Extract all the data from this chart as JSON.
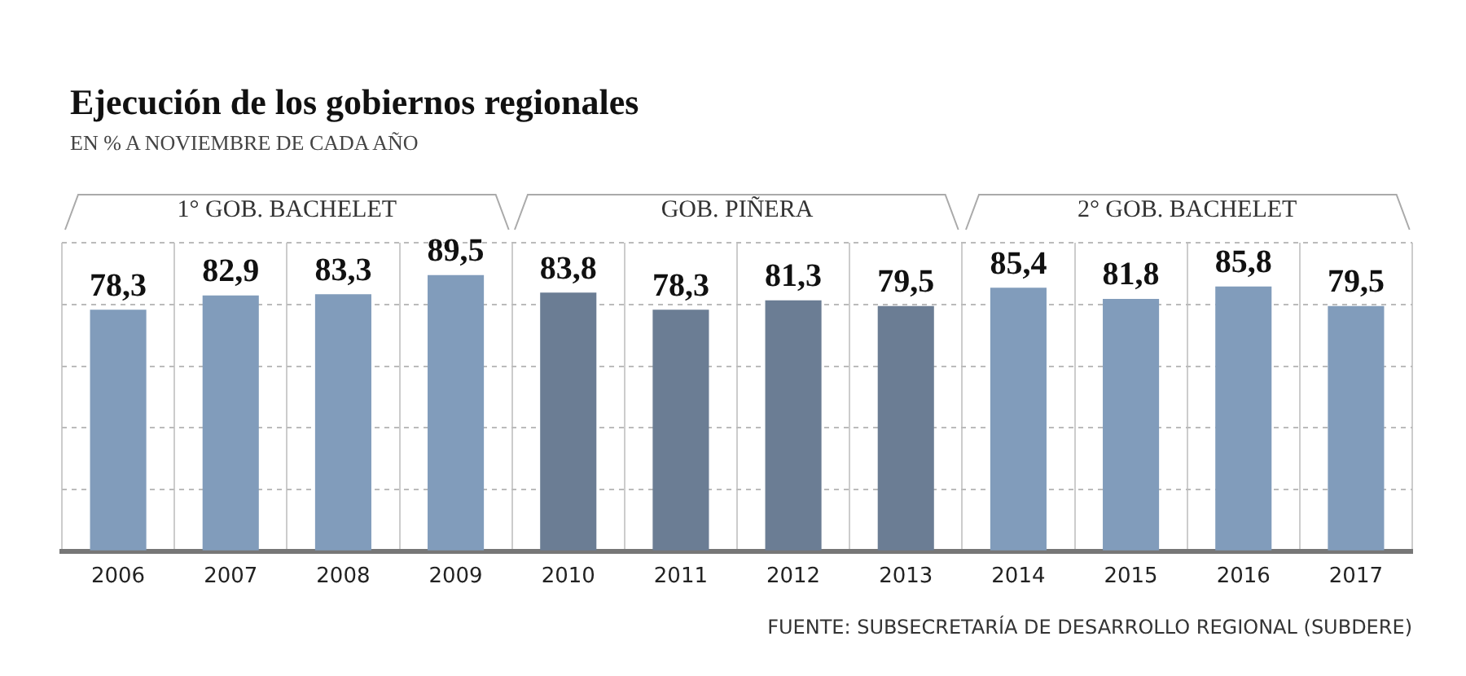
{
  "chart_data": {
    "type": "bar",
    "title": "Ejecución de los gobiernos regionales",
    "subtitle": "EN % A NOVIEMBRE DE CADA AÑO",
    "categories": [
      "2006",
      "2007",
      "2008",
      "2009",
      "2010",
      "2011",
      "2012",
      "2013",
      "2014",
      "2015",
      "2016",
      "2017"
    ],
    "values": [
      78.3,
      82.9,
      83.3,
      89.5,
      83.8,
      78.3,
      81.3,
      79.5,
      85.4,
      81.8,
      85.8,
      79.5
    ],
    "value_labels": [
      "78,3",
      "82,9",
      "83,3",
      "89,5",
      "83,8",
      "78,3",
      "81,3",
      "79,5",
      "85,4",
      "81,8",
      "85,8",
      "79,5"
    ],
    "colors": [
      "#819cbb",
      "#819cbb",
      "#819cbb",
      "#819cbb",
      "#6b7d94",
      "#6b7d94",
      "#6b7d94",
      "#6b7d94",
      "#819cbb",
      "#819cbb",
      "#819cbb",
      "#819cbb"
    ],
    "ylim": [
      0,
      100
    ],
    "yticks": [
      {
        "value": 0,
        "label": null
      },
      {
        "value": 20,
        "label": null
      },
      {
        "value": 40,
        "label": null
      },
      {
        "value": 60,
        "label": null
      },
      {
        "value": 80,
        "label": null
      },
      {
        "value": 100,
        "label": null
      }
    ],
    "tick_labels": "x",
    "grid": true,
    "legend": false,
    "annotations": [
      "1° GOB. BACHELET",
      "GOB. PIÑERA",
      "2° GOB. BACHELET",
      "FUENTE: SUBSECRETARÍA DE DESARROLLO REGIONAL (SUBDERE)"
    ]
  }
}
